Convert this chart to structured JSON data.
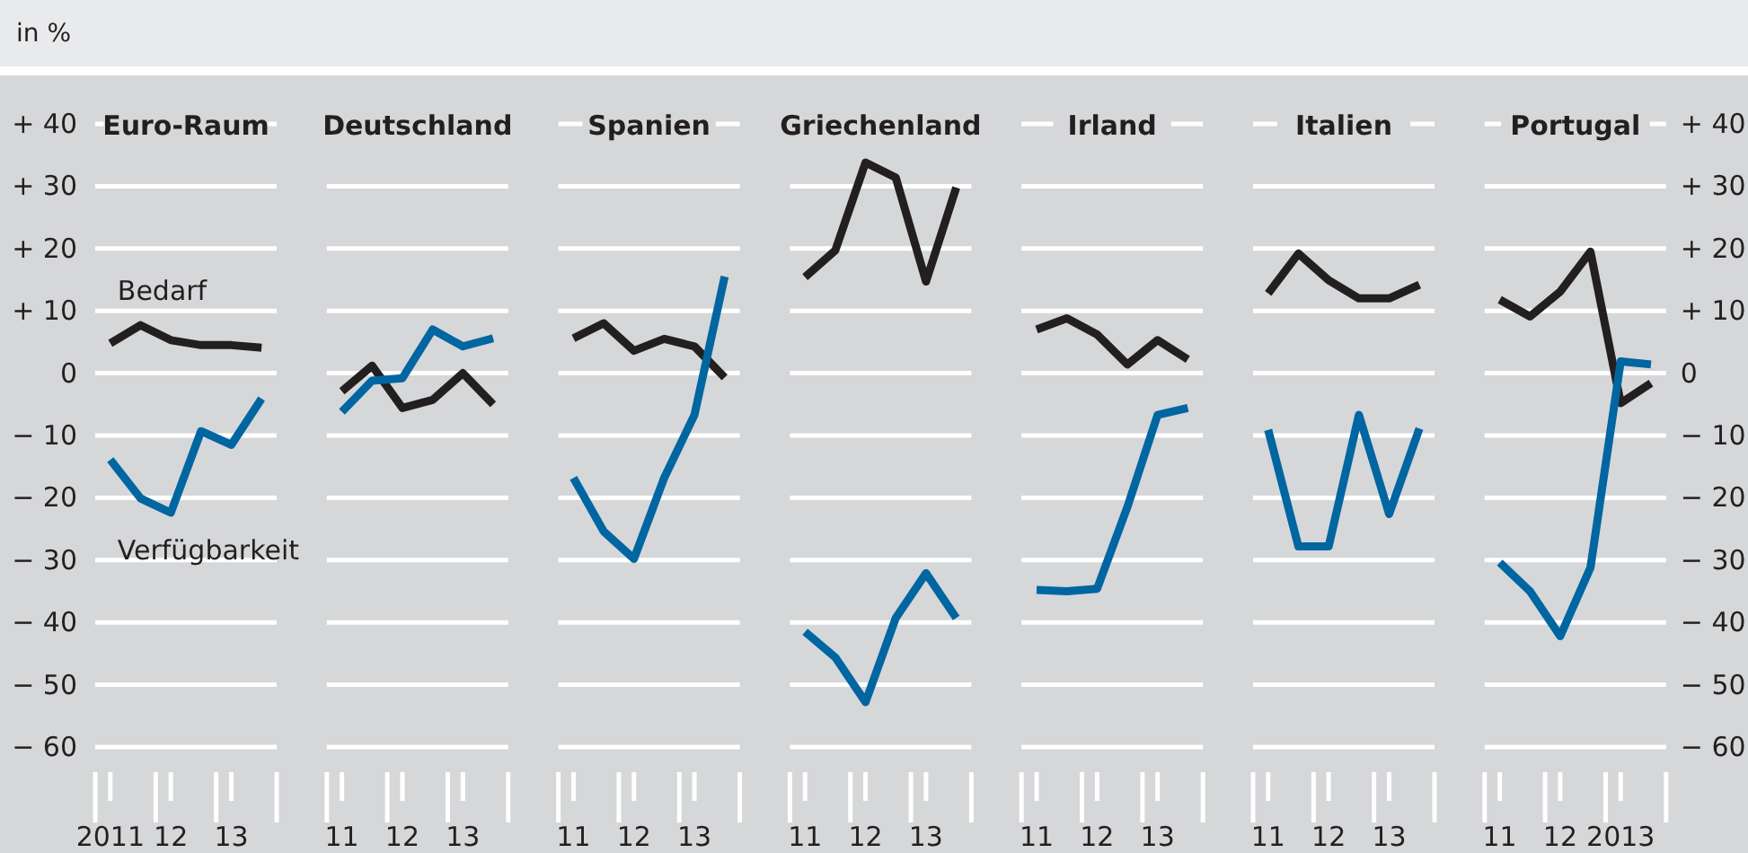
{
  "chart_data": [
    {
      "type": "line",
      "title": "Euro-Raum",
      "ylabel": "in %",
      "categories": [
        "2011",
        null,
        "12",
        null,
        "13",
        null
      ],
      "ylim": [
        -60,
        40
      ],
      "yticks": [
        {
          "value": 40,
          "label": "+ 40"
        },
        {
          "value": 30,
          "label": "+ 30"
        },
        {
          "value": 20,
          "label": "+ 20"
        },
        {
          "value": 10,
          "label": "+ 10"
        },
        0,
        {
          "value": -10,
          "label": "− 10"
        },
        {
          "value": -20,
          "label": "− 20"
        },
        {
          "value": -30,
          "label": "− 30"
        },
        {
          "value": -40,
          "label": "− 40"
        },
        {
          "value": -50,
          "label": "− 50"
        },
        {
          "value": -60,
          "label": "− 60"
        }
      ],
      "grid": "y",
      "series": [
        {
          "name": "Bedarf",
          "color": "#231f20",
          "values": [
            4.8,
            7.7,
            5.3,
            4.5,
            4.5,
            4.1
          ]
        },
        {
          "name": "Verfügbarkeit",
          "color": "#0066a1",
          "values": [
            -13.9,
            -20.1,
            -22.4,
            -9.3,
            -11.5,
            -4.1
          ]
        }
      ]
    },
    {
      "type": "line",
      "title": "Deutschland",
      "categories": [
        "11",
        null,
        "12",
        null,
        "13",
        null
      ],
      "ylim": [
        -60,
        40
      ],
      "yticks": [
        40,
        30,
        20,
        10,
        0,
        -10,
        -20,
        -30,
        -40,
        -50,
        -60
      ],
      "grid": "y",
      "tick_labels": "x",
      "series": [
        {
          "color": "#231f20",
          "values": [
            -2.9,
            1.2,
            -5.6,
            -4.3,
            0,
            -5
          ]
        },
        {
          "color": "#0066a1",
          "values": [
            -6.2,
            -1.2,
            -0.8,
            7,
            4.3,
            5.6
          ]
        }
      ]
    },
    {
      "type": "line",
      "title": "Spanien",
      "categories": [
        "11",
        null,
        "12",
        null,
        "13",
        null
      ],
      "ylim": [
        -60,
        40
      ],
      "yticks": [
        40,
        30,
        20,
        10,
        0,
        -10,
        -20,
        -30,
        -40,
        -50,
        -60
      ],
      "grid": "y",
      "tick_labels": "x",
      "series": [
        {
          "color": "#231f20",
          "values": [
            5.6,
            8,
            3.6,
            5.5,
            4.3,
            -0.7
          ]
        },
        {
          "color": "#0066a1",
          "values": [
            -16.8,
            -25.4,
            -29.8,
            -16.8,
            -6.7,
            15.5
          ]
        }
      ]
    },
    {
      "type": "line",
      "title": "Griechenland",
      "categories": [
        "11",
        null,
        "12",
        null,
        "13",
        null
      ],
      "ylim": [
        -60,
        40
      ],
      "yticks": [
        40,
        30,
        20,
        10,
        0,
        -10,
        -20,
        -30,
        -40,
        -50,
        -60
      ],
      "grid": "y",
      "tick_labels": "x",
      "series": [
        {
          "color": "#231f20",
          "values": [
            15.4,
            19.7,
            33.8,
            31.4,
            14.7,
            29.8
          ]
        },
        {
          "color": "#0066a1",
          "values": [
            -41.5,
            -45.6,
            -52.8,
            -39.3,
            -32.1,
            -39.3
          ]
        }
      ]
    },
    {
      "type": "line",
      "title": "Irland",
      "categories": [
        "11",
        null,
        "12",
        null,
        "13",
        null
      ],
      "ylim": [
        -60,
        40
      ],
      "yticks": [
        40,
        30,
        20,
        10,
        0,
        -10,
        -20,
        -30,
        -40,
        -50,
        -60
      ],
      "grid": "y",
      "tick_labels": "x",
      "series": [
        {
          "color": "#231f20",
          "values": [
            7,
            8.8,
            6.2,
            1.4,
            5.3,
            2.2
          ]
        },
        {
          "color": "#0066a1",
          "values": [
            -34.8,
            -35,
            -34.6,
            -21.5,
            -6.7,
            -5.6
          ]
        }
      ]
    },
    {
      "type": "line",
      "title": "Italien",
      "categories": [
        "11",
        null,
        "12",
        null,
        "13",
        null
      ],
      "ylim": [
        -60,
        40
      ],
      "yticks": [
        40,
        30,
        20,
        10,
        0,
        -10,
        -20,
        -30,
        -40,
        -50,
        -60
      ],
      "grid": "y",
      "tick_labels": "x",
      "series": [
        {
          "color": "#231f20",
          "values": [
            12.8,
            19.2,
            14.9,
            12,
            12,
            14.2
          ]
        },
        {
          "color": "#0066a1",
          "values": [
            -9.1,
            -27.8,
            -27.8,
            -6.7,
            -22.6,
            -8.9
          ]
        }
      ]
    },
    {
      "type": "line",
      "title": "Portugal",
      "categories": [
        "11",
        null,
        "12",
        null,
        "2013",
        null
      ],
      "ylim": [
        -60,
        40
      ],
      "yticks": [
        {
          "value": 40,
          "label": "+ 40"
        },
        {
          "value": 30,
          "label": "+ 30"
        },
        {
          "value": 20,
          "label": "+ 20"
        },
        {
          "value": 10,
          "label": "+ 10"
        },
        0,
        {
          "value": -10,
          "label": "− 10"
        },
        {
          "value": -20,
          "label": "− 20"
        },
        {
          "value": -30,
          "label": "− 30"
        },
        {
          "value": -40,
          "label": "− 40"
        },
        {
          "value": -50,
          "label": "− 50"
        },
        {
          "value": -60,
          "label": "− 60"
        }
      ],
      "grid": "y",
      "series": [
        {
          "color": "#231f20",
          "values": [
            11.8,
            9.1,
            13.1,
            19.5,
            -4.8,
            -1.6
          ]
        },
        {
          "color": "#0066a1",
          "values": [
            -30.4,
            -35,
            -42.2,
            -31.2,
            1.9,
            1.4
          ]
        }
      ]
    }
  ]
}
